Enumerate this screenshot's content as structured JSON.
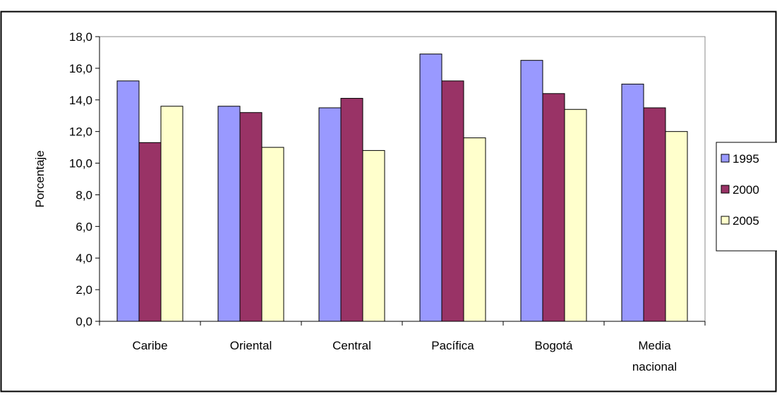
{
  "chart_data": {
    "type": "bar",
    "title": "",
    "xlabel": "",
    "ylabel": "Porcentaje",
    "ylim": [
      0,
      18
    ],
    "ytick_step": 2,
    "ytick_labels": [
      "0,0",
      "2,0",
      "4,0",
      "6,0",
      "8,0",
      "10,0",
      "12,0",
      "14,0",
      "16,0",
      "18,0"
    ],
    "grid": false,
    "legend_position": "right",
    "categories": [
      [
        "Caribe"
      ],
      [
        "Oriental"
      ],
      [
        "Central"
      ],
      [
        "Pacífica"
      ],
      [
        "Bogotá"
      ],
      [
        "Media",
        "nacional"
      ]
    ],
    "series": [
      {
        "name": "1995",
        "color": "#9999FF",
        "values": [
          15.2,
          13.6,
          13.5,
          16.9,
          16.5,
          15.0
        ]
      },
      {
        "name": "2000",
        "color": "#993366",
        "values": [
          11.3,
          13.2,
          14.1,
          15.2,
          14.4,
          13.5
        ]
      },
      {
        "name": "2005",
        "color": "#FFFFCC",
        "values": [
          13.6,
          11.0,
          10.8,
          11.6,
          13.4,
          12.0
        ]
      }
    ]
  }
}
